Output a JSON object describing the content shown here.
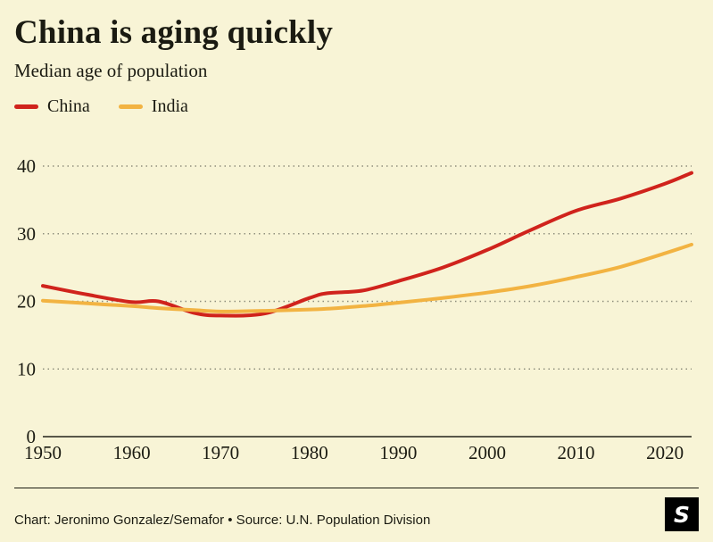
{
  "header": {
    "title": "China is aging quickly",
    "subtitle": "Median age of population"
  },
  "legend": [
    {
      "label": "China",
      "color": "#d0231c"
    },
    {
      "label": "India",
      "color": "#f2b342"
    }
  ],
  "footer": {
    "credit": "Chart: Jeronimo Gonzalez/Semafor • Source: U.N. Population Division",
    "logo_letter": "S"
  },
  "colors": {
    "background": "#f8f4d6",
    "text": "#1b1b12",
    "gridline": "#8f8f7d",
    "axis": "#23231a",
    "china_line": "#d0231c",
    "india_line": "#f2b342"
  },
  "chart_data": {
    "type": "line",
    "title": "China is aging quickly",
    "subtitle": "Median age of population",
    "xlabel": "",
    "ylabel": "Median age of population",
    "x": [
      1950,
      1955,
      1960,
      1963,
      1967,
      1970,
      1975,
      1980,
      1982,
      1986,
      1990,
      1995,
      2000,
      2005,
      2010,
      2015,
      2020,
      2023
    ],
    "series": [
      {
        "name": "China",
        "color": "#d0231c",
        "values": [
          22.3,
          21.0,
          19.9,
          20.0,
          18.3,
          17.9,
          18.2,
          20.5,
          21.2,
          21.6,
          23.0,
          25.0,
          27.6,
          30.6,
          33.4,
          35.2,
          37.4,
          39.0
        ]
      },
      {
        "name": "India",
        "color": "#f2b342",
        "values": [
          20.1,
          19.7,
          19.3,
          19.0,
          18.7,
          18.5,
          18.6,
          18.8,
          18.9,
          19.3,
          19.8,
          20.5,
          21.3,
          22.3,
          23.6,
          25.1,
          27.1,
          28.4
        ]
      }
    ],
    "xrange": [
      1950,
      2023
    ],
    "ylim": [
      0,
      40
    ],
    "yticks": [
      0,
      10,
      20,
      30,
      40
    ],
    "xticks": [
      1950,
      1960,
      1970,
      1980,
      1990,
      2000,
      2010,
      2020
    ],
    "grid": "horizontal-dotted",
    "legend_position": "top-left"
  }
}
